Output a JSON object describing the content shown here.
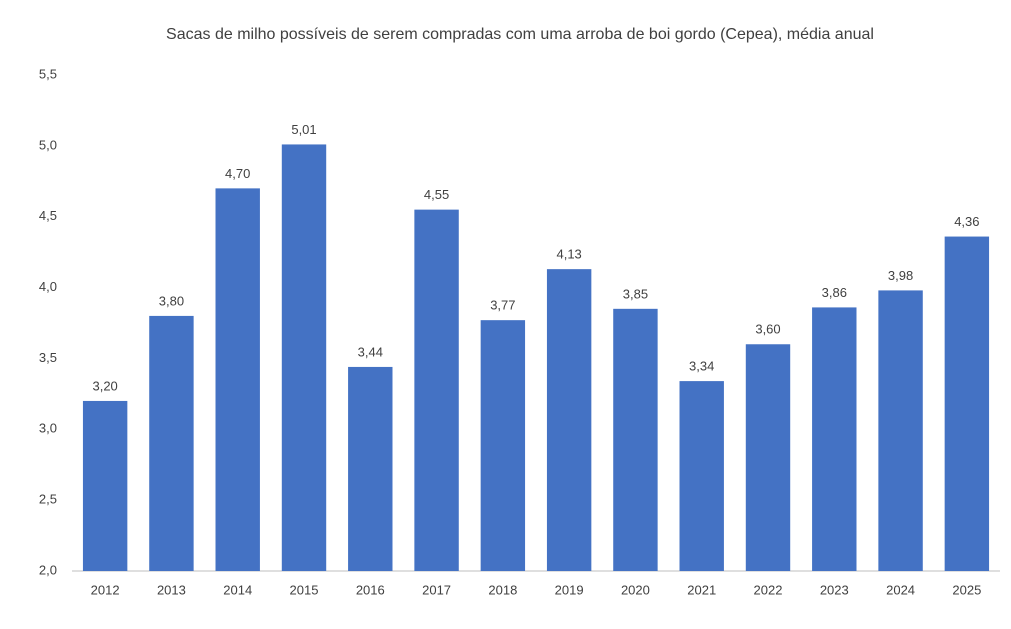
{
  "chart_data": {
    "type": "bar",
    "title": "Sacas de milho possíveis de serem compradas com uma arroba de boi gordo (Cepea), média anual",
    "categories": [
      "2012",
      "2013",
      "2014",
      "2015",
      "2016",
      "2017",
      "2018",
      "2019",
      "2020",
      "2021",
      "2022",
      "2023",
      "2024",
      "2025"
    ],
    "values": [
      3.2,
      3.8,
      4.7,
      5.01,
      3.44,
      4.55,
      3.77,
      4.13,
      3.85,
      3.34,
      3.6,
      3.86,
      3.98,
      4.36
    ],
    "value_labels": [
      "3,20",
      "3,80",
      "4,70",
      "5,01",
      "3,44",
      "4,55",
      "3,77",
      "4,13",
      "3,85",
      "3,34",
      "3,60",
      "3,86",
      "3,98",
      "4,36"
    ],
    "color": "#4472c4",
    "ylim": [
      2.0,
      5.5
    ],
    "yticks": [
      {
        "value": 2.0,
        "label": "2,0"
      },
      {
        "value": 2.5,
        "label": "2,5"
      },
      {
        "value": 3.0,
        "label": "3,0"
      },
      {
        "value": 3.5,
        "label": "3,5"
      },
      {
        "value": 4.0,
        "label": "4,0"
      },
      {
        "value": 4.5,
        "label": "4,5"
      },
      {
        "value": 5.0,
        "label": "5,0"
      },
      {
        "value": 5.5,
        "label": "5,5"
      }
    ],
    "grid": false
  }
}
